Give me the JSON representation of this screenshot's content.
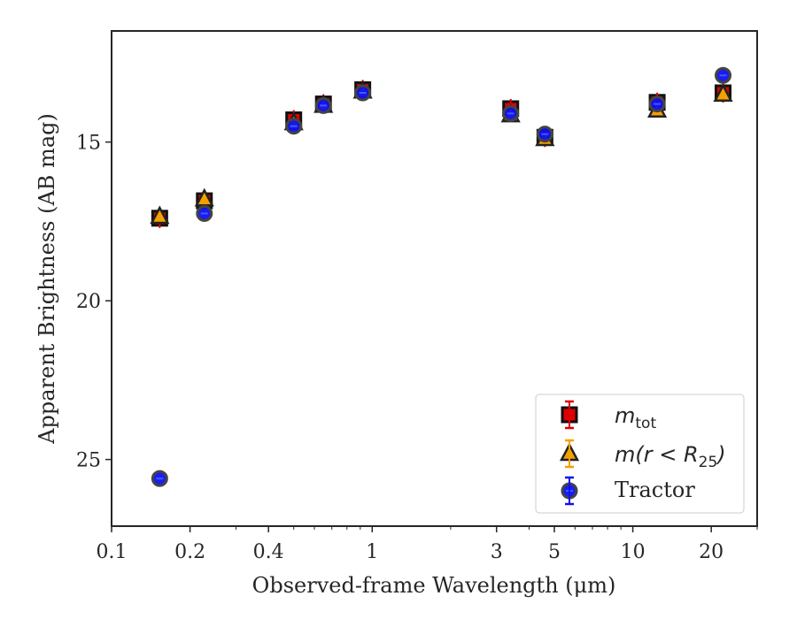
{
  "chart_data": {
    "type": "scatter",
    "xlabel": "Observed-frame Wavelength (μm)",
    "ylabel": "Apparent Brightness (AB mag)",
    "xscale": "log",
    "xlim": [
      0.1,
      30
    ],
    "ylim": [
      27.1,
      11.5
    ],
    "y_inverted": true,
    "xticks": [
      {
        "value": 0.1,
        "label": "0.1"
      },
      {
        "value": 0.2,
        "label": "0.2"
      },
      {
        "value": 0.4,
        "label": "0.4"
      },
      {
        "value": 1,
        "label": "1"
      },
      {
        "value": 3,
        "label": "3"
      },
      {
        "value": 5,
        "label": "5"
      },
      {
        "value": 10,
        "label": "10"
      },
      {
        "value": 20,
        "label": "20"
      }
    ],
    "yticks": [
      {
        "value": 15,
        "label": "15"
      },
      {
        "value": 20,
        "label": "20"
      },
      {
        "value": 25,
        "label": "25"
      }
    ],
    "grid": false,
    "legend_position": "lower-right",
    "series": [
      {
        "name": "m_tot",
        "marker": "square",
        "color": "#e00000",
        "edge": "#111111",
        "points": [
          {
            "x": 0.153,
            "y": 17.4
          },
          {
            "x": 0.227,
            "y": 16.85
          },
          {
            "x": 0.5,
            "y": 14.3
          },
          {
            "x": 0.65,
            "y": 13.8
          },
          {
            "x": 0.92,
            "y": 13.35
          },
          {
            "x": 3.4,
            "y": 13.95
          },
          {
            "x": 4.6,
            "y": 14.85
          },
          {
            "x": 12.4,
            "y": 13.75
          },
          {
            "x": 22.2,
            "y": 13.45
          }
        ]
      },
      {
        "name": "m(r<R25)",
        "marker": "triangle",
        "color": "#f5a000",
        "edge": "#222222",
        "points": [
          {
            "x": 0.153,
            "y": 17.35
          },
          {
            "x": 0.227,
            "y": 16.8
          },
          {
            "x": 0.5,
            "y": 14.4
          },
          {
            "x": 0.65,
            "y": 13.85
          },
          {
            "x": 0.92,
            "y": 13.4
          },
          {
            "x": 3.4,
            "y": 14.15
          },
          {
            "x": 4.6,
            "y": 14.9
          },
          {
            "x": 12.4,
            "y": 14.0
          },
          {
            "x": 22.2,
            "y": 13.5
          }
        ]
      },
      {
        "name": "Tractor",
        "marker": "circle",
        "color": "#1010ee",
        "edge": "#444444",
        "points": [
          {
            "x": 0.153,
            "y": 25.6
          },
          {
            "x": 0.227,
            "y": 17.25
          },
          {
            "x": 0.5,
            "y": 14.5
          },
          {
            "x": 0.65,
            "y": 13.85
          },
          {
            "x": 0.92,
            "y": 13.45
          },
          {
            "x": 3.4,
            "y": 14.1
          },
          {
            "x": 4.6,
            "y": 14.75
          },
          {
            "x": 12.4,
            "y": 13.8
          },
          {
            "x": 22.2,
            "y": 12.9
          }
        ]
      }
    ],
    "legend": {
      "mtot_base": "m",
      "mtot_sub": "tot",
      "mr_prefix": "m(r < R",
      "mr_sub": "25",
      "mr_suffix": ")",
      "tractor": "Tractor"
    }
  }
}
